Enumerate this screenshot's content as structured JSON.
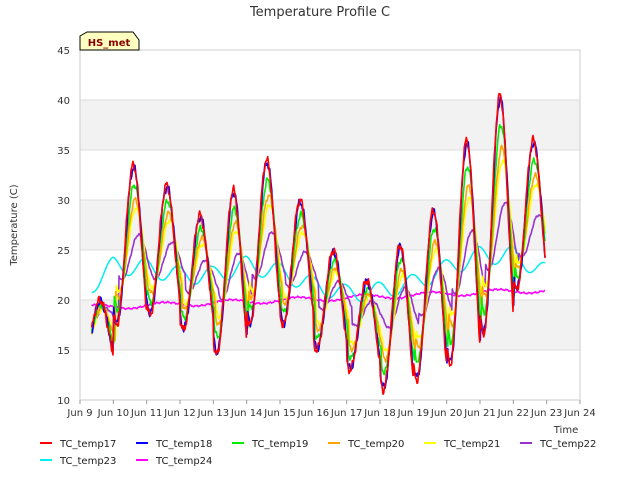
{
  "chart_data": {
    "type": "line",
    "title": "Temperature Profile C",
    "xlabel": "Time",
    "ylabel": "Temperature (C)",
    "badge": "HS_met",
    "ylim": [
      10,
      45
    ],
    "yticks": [
      10,
      15,
      20,
      25,
      30,
      35,
      40,
      45
    ],
    "xlim": [
      0,
      15
    ],
    "xticks": [
      0,
      1,
      2,
      3,
      4,
      5,
      6,
      7,
      8,
      9,
      10,
      11,
      12,
      13,
      14,
      15
    ],
    "xtick_labels": [
      "Jun 9",
      "Jun 10",
      "Jun 11",
      "Jun 12",
      "Jun 13",
      "Jun 14",
      "Jun 15",
      "Jun 16",
      "Jun 17",
      "Jun 18",
      "Jun 19",
      "Jun 20",
      "Jun 21",
      "Jun 22",
      "Jun 23",
      "Jun 24"
    ],
    "x_day_offset": 9,
    "grid": true,
    "legend_position": "bottom",
    "daily_extremes": {
      "days": [
        9,
        10,
        11,
        12,
        13,
        14,
        15,
        16,
        17,
        18,
        19,
        20,
        21,
        22,
        23
      ],
      "max": [
        20,
        33.5,
        31.5,
        28.5,
        31,
        34,
        30,
        25,
        22,
        25.5,
        29,
        36,
        40.5,
        36,
        24
      ],
      "min": [
        14,
        17.5,
        18.5,
        17,
        14.5,
        17.5,
        17.5,
        15,
        13,
        11,
        12,
        13.5,
        16.5,
        21,
        23
      ]
    },
    "series": [
      {
        "name": "TC_temp17",
        "color": "#ff0000"
      },
      {
        "name": "TC_temp18",
        "color": "#0000ff"
      },
      {
        "name": "TC_temp19",
        "color": "#00ee00"
      },
      {
        "name": "TC_temp20",
        "color": "#ffa500"
      },
      {
        "name": "TC_temp21",
        "color": "#ffff00"
      },
      {
        "name": "TC_temp22",
        "color": "#9932cc"
      },
      {
        "name": "TC_temp23",
        "color": "#00eeee"
      },
      {
        "name": "TC_temp24",
        "color": "#ff00ff"
      }
    ]
  }
}
